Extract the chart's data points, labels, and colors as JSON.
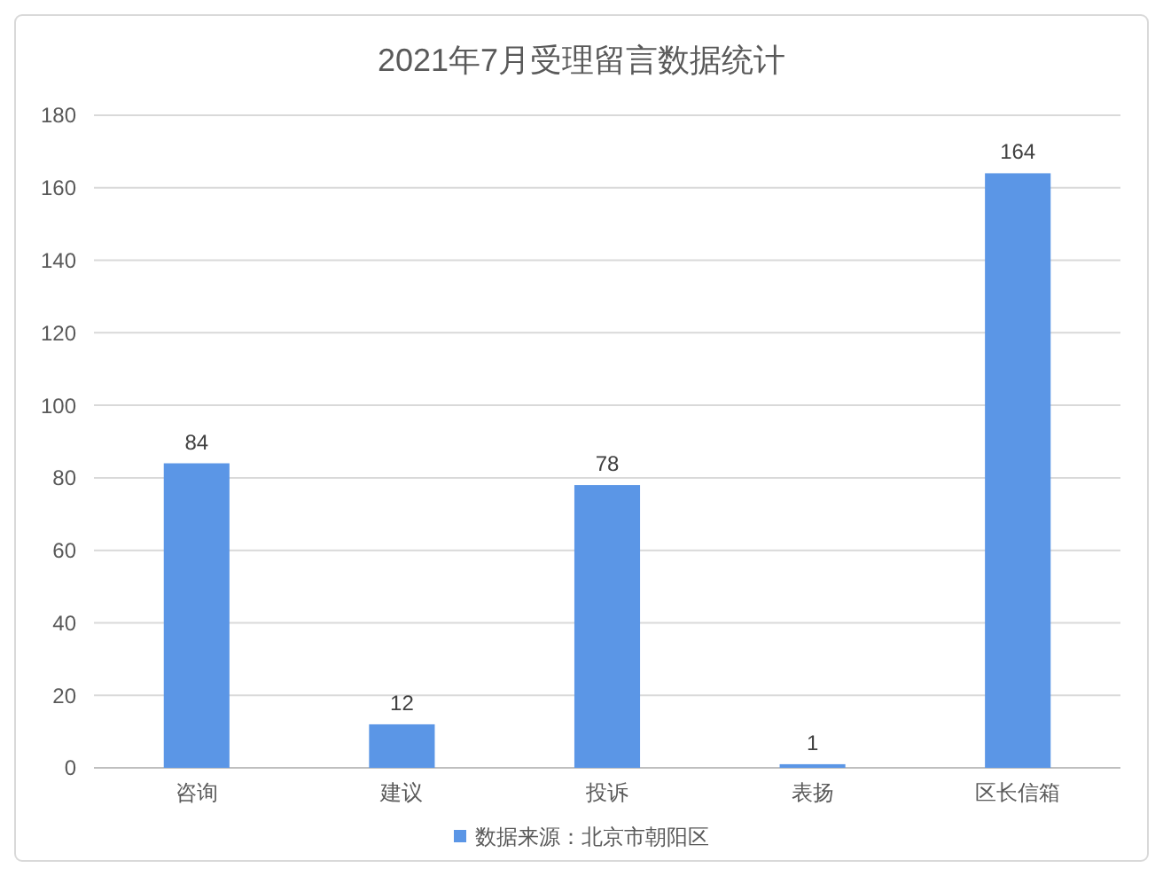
{
  "chart_data": {
    "type": "bar",
    "title": "2021年7月受理留言数据统计",
    "categories": [
      "咨询",
      "建议",
      "投诉",
      "表扬",
      "区长信箱"
    ],
    "series": [
      {
        "name": "数据来源：北京市朝阳区",
        "color": "#5b96e6",
        "values": [
          84,
          12,
          78,
          1,
          164
        ]
      }
    ],
    "ylim": [
      0,
      180
    ],
    "yticks": [
      0,
      20,
      40,
      60,
      80,
      100,
      120,
      140,
      160,
      180
    ],
    "grid": "y",
    "legend": "bottom",
    "data_labels": true
  }
}
